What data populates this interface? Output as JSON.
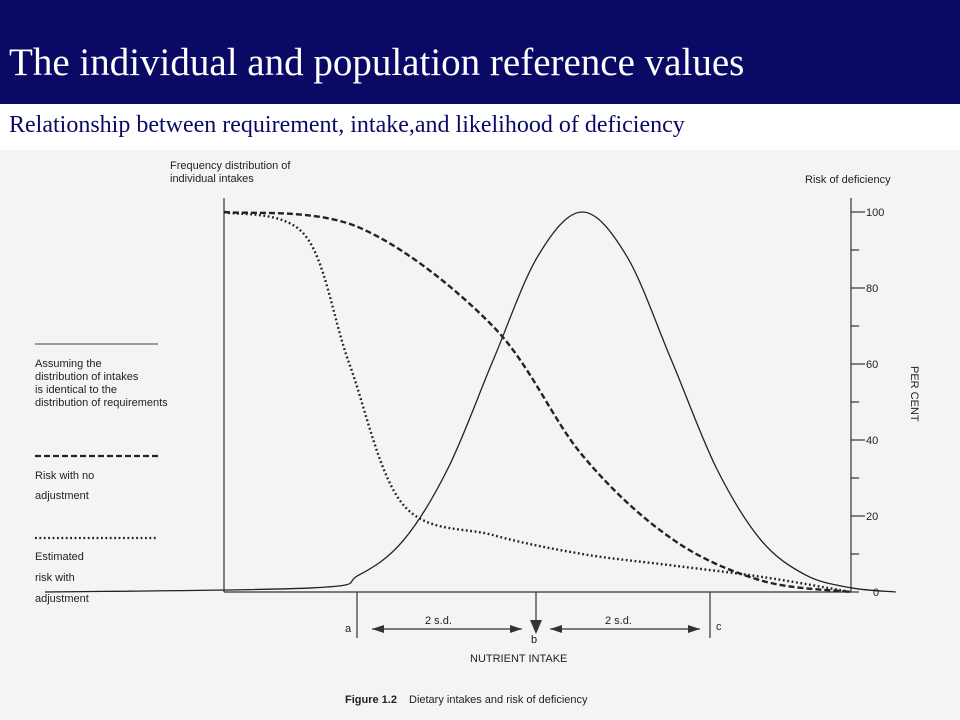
{
  "header": {
    "title": "The individual and population reference values",
    "subtitle": "Relationship between requirement, intake,and likelihood of deficiency"
  },
  "colors": {
    "title_bar": "#0a0a66",
    "subtitle": "#0a0a66",
    "figure_ink": "#222222"
  },
  "chart_data": {
    "type": "line",
    "y_left_label": [
      "Frequency distribution of",
      "individual intakes"
    ],
    "y_right_title": "Risk of deficiency",
    "y_right_label": "PER CENT",
    "y_right_ticks": [
      "100",
      "80",
      "60",
      "40",
      "20",
      "0"
    ],
    "ylim": [
      0,
      100
    ],
    "xlabel": "NUTRIENT INTAKE",
    "x_markers": [
      "a",
      "b",
      "c"
    ],
    "sd_labels": [
      "2 s.d.",
      "2 s.d."
    ],
    "legend": [
      {
        "style": "solid",
        "lines": [
          "Assuming the",
          "distribution of intakes",
          "is identical to the",
          "distribution of requirements"
        ]
      },
      {
        "style": "dashed",
        "lines": [
          "Risk with no",
          "adjustment"
        ]
      },
      {
        "style": "dotted",
        "lines": [
          "Estimated",
          "risk with",
          "adjustment"
        ]
      }
    ],
    "caption_label": "Figure 1.2",
    "caption_text": "Dietary intakes and risk of deficiency",
    "series": [
      {
        "key": "distribution",
        "style": "solid",
        "x": [
          -6,
          -3,
          -2.5,
          -2,
          -1.5,
          -1,
          -0.5,
          0,
          0.5,
          1,
          1.5,
          2,
          2.5,
          3,
          3.5
        ],
        "y": [
          0,
          1.1,
          4.4,
          13.5,
          32.5,
          60.7,
          88.2,
          100,
          88.2,
          60.7,
          32.5,
          13.5,
          4.4,
          1.1,
          0
        ]
      },
      {
        "key": "risk_no_adjustment",
        "style": "dashed",
        "x": [
          -4,
          -2.5,
          -1,
          0,
          1,
          2,
          3
        ],
        "y": [
          100,
          96,
          70,
          36,
          14,
          3,
          0
        ]
      },
      {
        "key": "risk_with_adjustment",
        "style": "dotted",
        "x": [
          -4,
          -3.1,
          -2.6,
          -2,
          -1,
          0,
          1,
          2,
          3
        ],
        "y": [
          100,
          94,
          60,
          23,
          15,
          10,
          7,
          4,
          0
        ]
      }
    ]
  }
}
